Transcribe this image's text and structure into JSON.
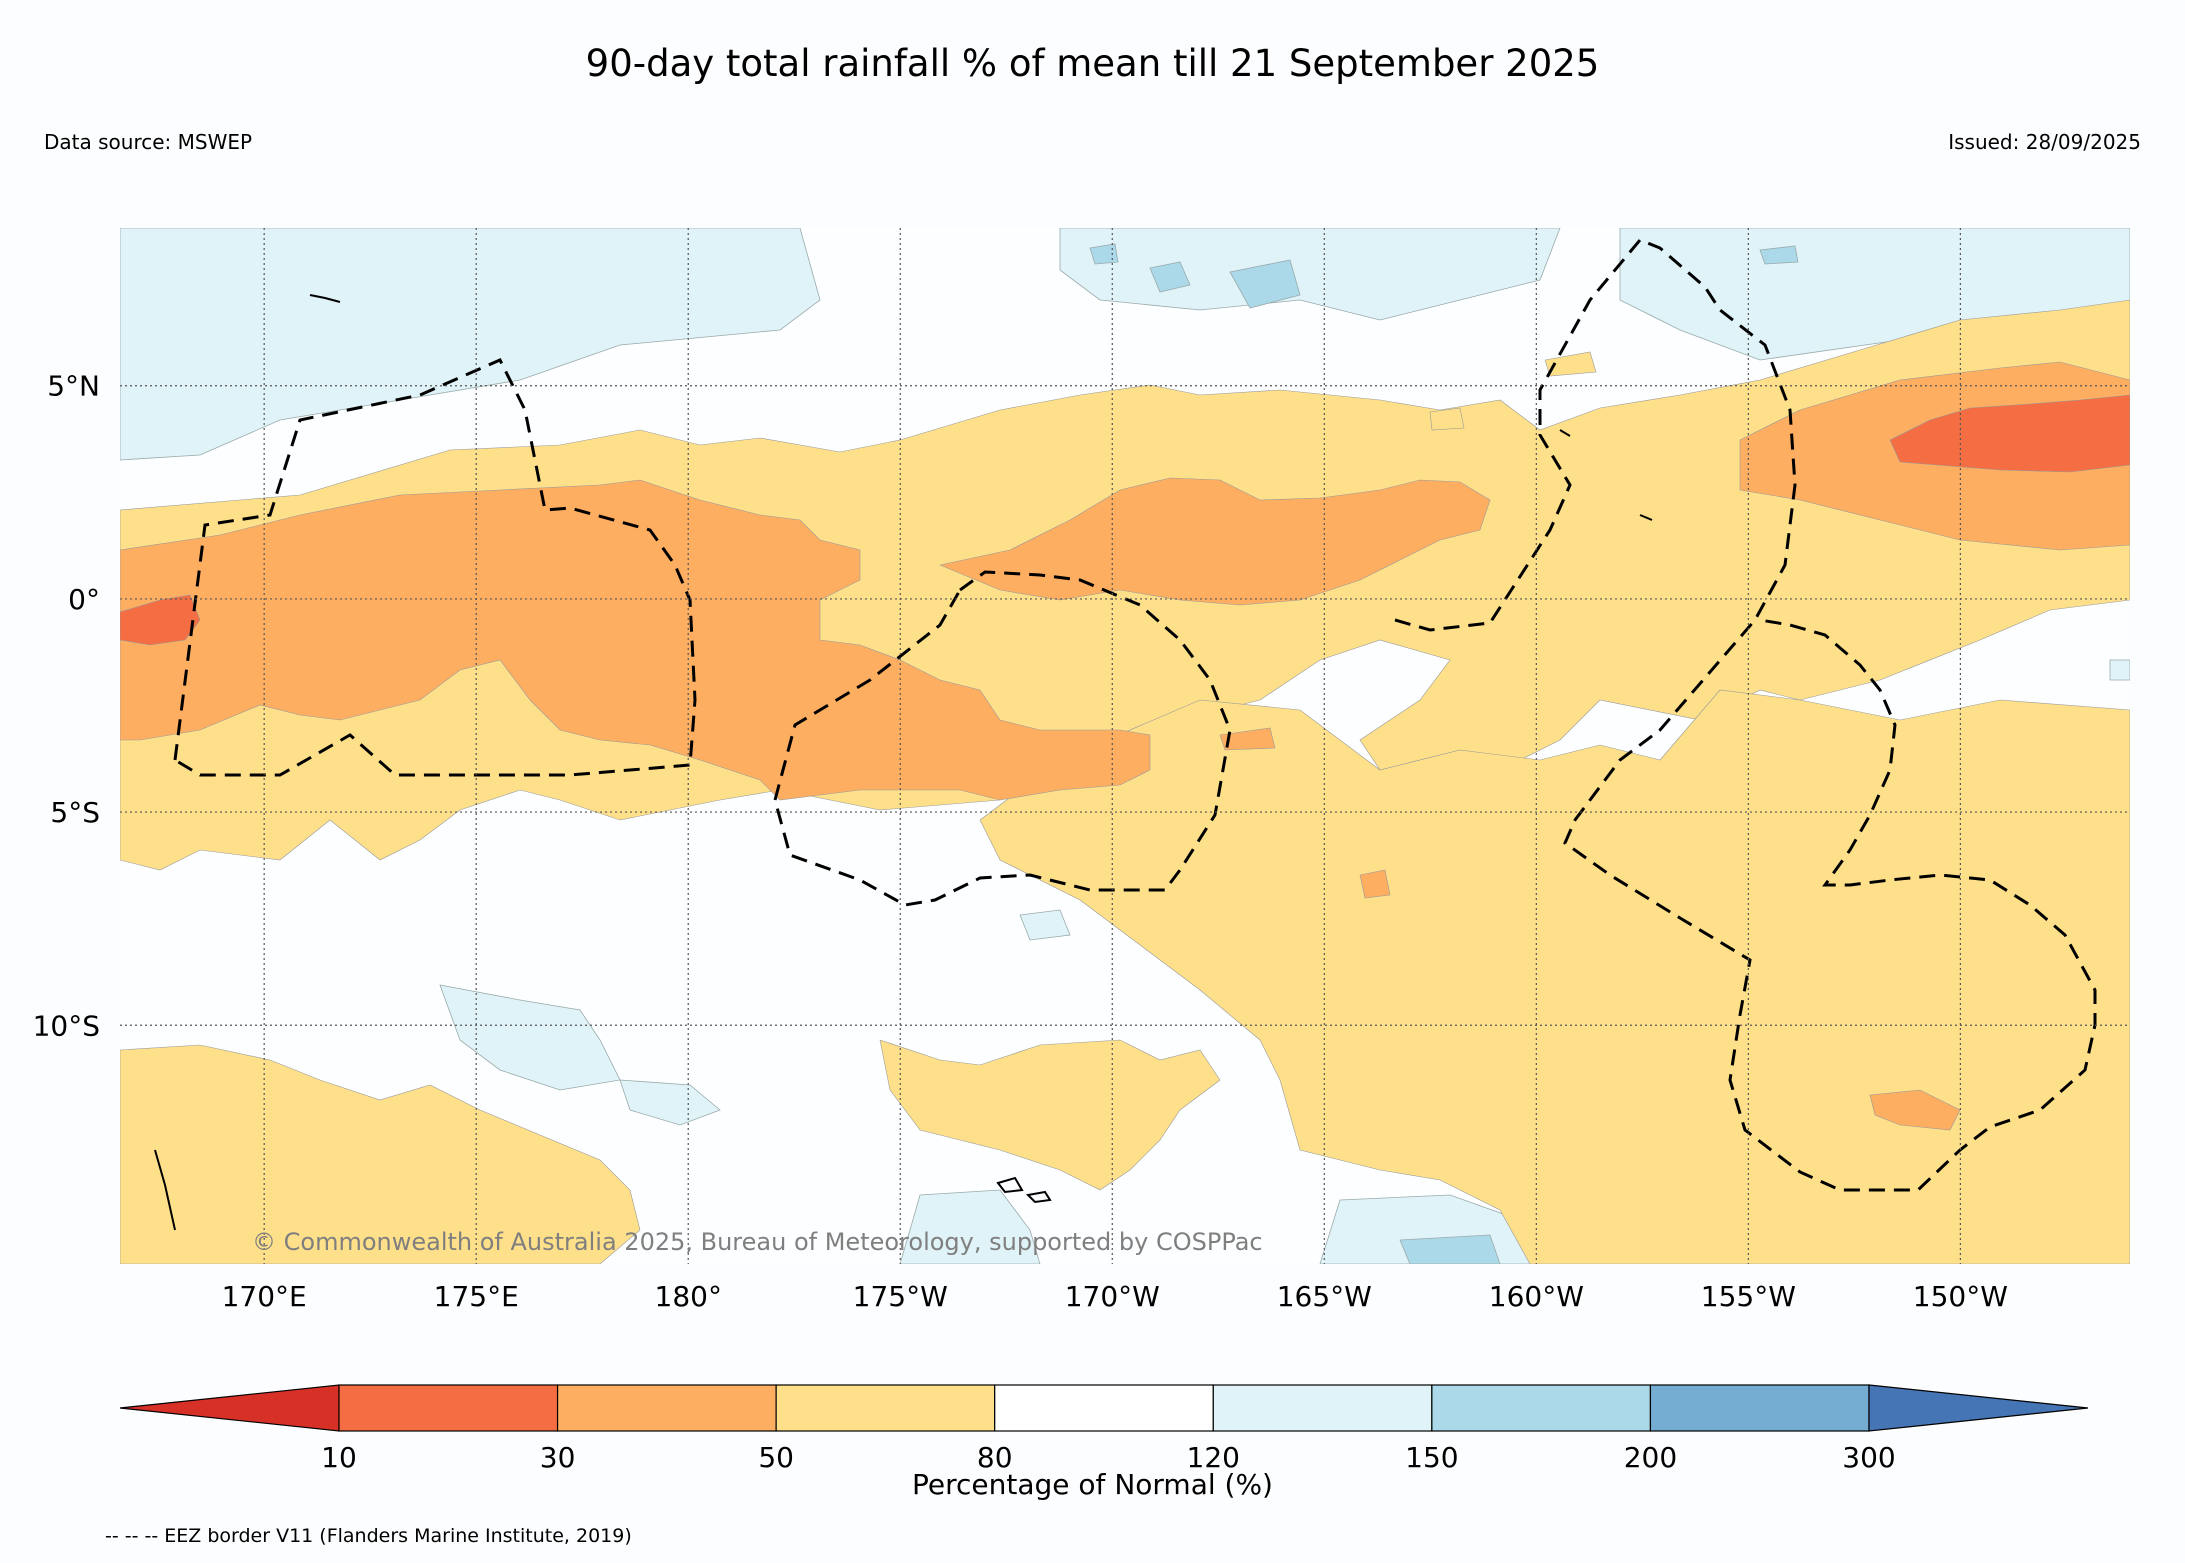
{
  "title": "90-day total rainfall % of mean till 21 September 2025",
  "data_source": "Data source: MSWEP",
  "issued": "Issued: 28/09/2025",
  "copyright": "© Commonwealth of Australia 2025, Bureau of Meteorology, supported by COSPPac",
  "eez_note": "-- -- -- EEZ border V11 (Flanders Marine Institute, 2019)",
  "map": {
    "lon_ticks": [
      {
        "lon": 170,
        "label": "170°E"
      },
      {
        "lon": 175,
        "label": "175°E"
      },
      {
        "lon": 180,
        "label": "180°"
      },
      {
        "lon": 185,
        "label": "175°W"
      },
      {
        "lon": 190,
        "label": "170°W"
      },
      {
        "lon": 195,
        "label": "165°W"
      },
      {
        "lon": 200,
        "label": "160°W"
      },
      {
        "lon": 205,
        "label": "155°W"
      },
      {
        "lon": 210,
        "label": "150°W"
      }
    ],
    "lat_ticks": [
      {
        "lat": 5,
        "label": "5°N"
      },
      {
        "lat": 0,
        "label": "0°"
      },
      {
        "lat": -5,
        "label": "5°S"
      },
      {
        "lat": -10,
        "label": "10°S"
      }
    ],
    "lon_range": [
      166.6,
      214.0
    ],
    "lat_range": [
      -15.6,
      8.7
    ]
  },
  "legend": {
    "label": "Percentage of Normal (%)",
    "bins": [
      {
        "range": "10-30",
        "color": "#f46d43"
      },
      {
        "range": "30-50",
        "color": "#fdae61"
      },
      {
        "range": "50-80",
        "color": "#fee08b"
      },
      {
        "range": "80-120",
        "color": "#ffffff"
      },
      {
        "range": "120-150",
        "color": "#e0f3f8"
      },
      {
        "range": "150-200",
        "color": "#abd9e9"
      },
      {
        "range": "200-300",
        "color": "#74add1"
      }
    ],
    "under_color": "#d73027",
    "over_color": "#4575b4",
    "ticks": [
      "10",
      "30",
      "50",
      "80",
      "120",
      "150",
      "200",
      "300"
    ]
  }
}
